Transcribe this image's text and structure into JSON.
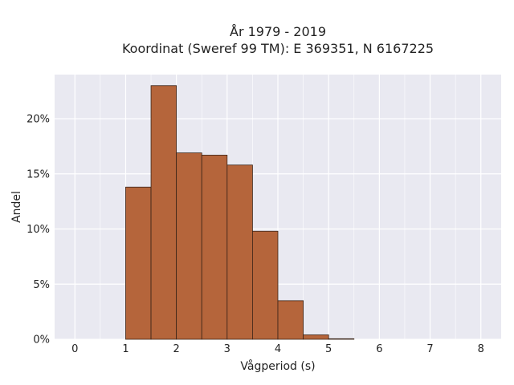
{
  "chart_data": {
    "type": "bar",
    "title_lines": [
      "År 1979 - 2019",
      "Koordinat (Sweref 99 TM): E 369351, N 6167225"
    ],
    "xlabel": "Vågperiod (s)",
    "ylabel": "Andel",
    "xlim": [
      -0.4,
      8.4
    ],
    "ylim": [
      0,
      0.24
    ],
    "x_ticks": [
      0,
      1,
      2,
      3,
      4,
      5,
      6,
      7,
      8
    ],
    "y_ticks": [
      0,
      0.05,
      0.1,
      0.15,
      0.2
    ],
    "y_tick_labels": [
      "0%",
      "5%",
      "10%",
      "15%",
      "20%"
    ],
    "bin_width": 0.5,
    "bins": [
      {
        "start": 1.0,
        "value": 0.138
      },
      {
        "start": 1.5,
        "value": 0.23
      },
      {
        "start": 2.0,
        "value": 0.169
      },
      {
        "start": 2.5,
        "value": 0.167
      },
      {
        "start": 3.0,
        "value": 0.158
      },
      {
        "start": 3.5,
        "value": 0.098
      },
      {
        "start": 4.0,
        "value": 0.035
      },
      {
        "start": 4.5,
        "value": 0.004
      },
      {
        "start": 5.0,
        "value": 0.0005
      }
    ],
    "bar_color": "#b5653b",
    "bar_edge_color": "#3a2418",
    "plot_background": "#e9e9f1",
    "grid_color": "#ffffff",
    "grid": true
  }
}
